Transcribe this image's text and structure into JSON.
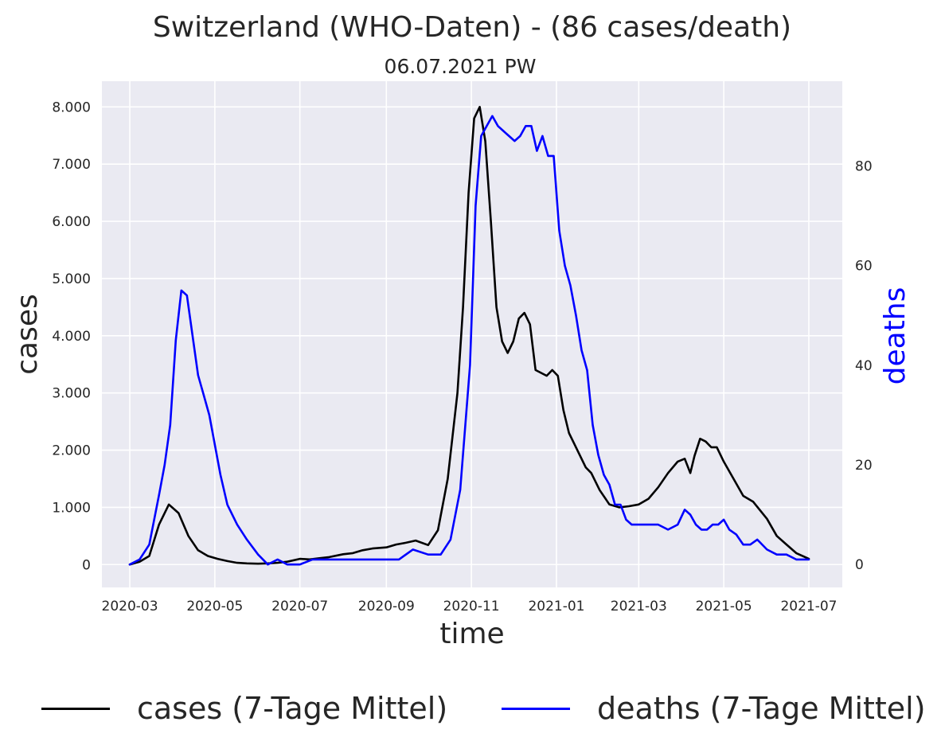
{
  "chart_data": {
    "type": "line",
    "title": "Switzerland (WHO-Daten) - (86 cases/death)",
    "subtitle": "06.07.2021 PW",
    "xlabel": "time",
    "ylabel": "cases",
    "ylabel_right": "deaths",
    "x_ticks": [
      "2020-03",
      "2020-05",
      "2020-07",
      "2020-09",
      "2020-11",
      "2021-01",
      "2021-03",
      "2021-05",
      "2021-07"
    ],
    "y_ticks": [
      "0",
      "1.000",
      "2.000",
      "3.000",
      "4.000",
      "5.000",
      "6.000",
      "7.000",
      "8.000"
    ],
    "y_ticks_right": [
      "0",
      "20",
      "40",
      "60",
      "80"
    ],
    "xlim": [
      "2020-02-10",
      "2021-07-25"
    ],
    "ylim": [
      -400,
      8450
    ],
    "ylim_right": [
      -4.6,
      97
    ],
    "grid": true,
    "legend_position": "bottom",
    "series": [
      {
        "name": "cases (7-Tage Mittel)",
        "axis": "left",
        "color": "#000000",
        "x": [
          "2020-03-01",
          "2020-03-08",
          "2020-03-15",
          "2020-03-22",
          "2020-03-29",
          "2020-04-05",
          "2020-04-12",
          "2020-04-19",
          "2020-04-26",
          "2020-05-03",
          "2020-05-10",
          "2020-05-17",
          "2020-05-24",
          "2020-06-01",
          "2020-06-08",
          "2020-06-15",
          "2020-06-22",
          "2020-07-01",
          "2020-07-08",
          "2020-07-15",
          "2020-07-22",
          "2020-08-01",
          "2020-08-08",
          "2020-08-15",
          "2020-08-22",
          "2020-09-01",
          "2020-09-08",
          "2020-09-15",
          "2020-09-22",
          "2020-10-01",
          "2020-10-08",
          "2020-10-15",
          "2020-10-22",
          "2020-10-26",
          "2020-10-30",
          "2020-11-03",
          "2020-11-07",
          "2020-11-11",
          "2020-11-15",
          "2020-11-19",
          "2020-11-23",
          "2020-11-27",
          "2020-12-01",
          "2020-12-05",
          "2020-12-09",
          "2020-12-13",
          "2020-12-17",
          "2020-12-21",
          "2020-12-25",
          "2020-12-29",
          "2021-01-02",
          "2021-01-06",
          "2021-01-10",
          "2021-01-14",
          "2021-01-18",
          "2021-01-22",
          "2021-01-26",
          "2021-02-01",
          "2021-02-08",
          "2021-02-15",
          "2021-02-22",
          "2021-03-01",
          "2021-03-08",
          "2021-03-15",
          "2021-03-22",
          "2021-03-29",
          "2021-04-03",
          "2021-04-07",
          "2021-04-10",
          "2021-04-14",
          "2021-04-18",
          "2021-04-22",
          "2021-04-26",
          "2021-05-01",
          "2021-05-08",
          "2021-05-15",
          "2021-05-22",
          "2021-06-01",
          "2021-06-08",
          "2021-06-15",
          "2021-06-22",
          "2021-07-01"
        ],
        "values": [
          0,
          50,
          150,
          700,
          1050,
          900,
          500,
          250,
          150,
          100,
          60,
          30,
          20,
          15,
          20,
          30,
          50,
          100,
          90,
          110,
          130,
          180,
          200,
          250,
          280,
          300,
          350,
          380,
          420,
          340,
          600,
          1500,
          3000,
          4500,
          6500,
          7800,
          8000,
          7400,
          6000,
          4500,
          3900,
          3700,
          3900,
          4300,
          4400,
          4200,
          3400,
          3350,
          3300,
          3400,
          3300,
          2700,
          2300,
          2100,
          1900,
          1700,
          1600,
          1300,
          1050,
          1000,
          1020,
          1050,
          1150,
          1350,
          1600,
          1800,
          1850,
          1600,
          1900,
          2200,
          2150,
          2050,
          2050,
          1800,
          1500,
          1200,
          1100,
          800,
          500,
          350,
          200,
          100
        ]
      },
      {
        "name": "deaths (7-Tage Mittel)",
        "axis": "right",
        "color": "#0000ff",
        "x": [
          "2020-03-01",
          "2020-03-08",
          "2020-03-15",
          "2020-03-22",
          "2020-03-26",
          "2020-03-30",
          "2020-04-03",
          "2020-04-07",
          "2020-04-11",
          "2020-04-15",
          "2020-04-19",
          "2020-04-23",
          "2020-04-27",
          "2020-05-01",
          "2020-05-05",
          "2020-05-10",
          "2020-05-17",
          "2020-05-24",
          "2020-06-01",
          "2020-06-08",
          "2020-06-15",
          "2020-06-22",
          "2020-07-01",
          "2020-07-10",
          "2020-07-20",
          "2020-08-01",
          "2020-08-10",
          "2020-08-20",
          "2020-09-01",
          "2020-09-10",
          "2020-09-20",
          "2020-10-01",
          "2020-10-10",
          "2020-10-17",
          "2020-10-24",
          "2020-10-31",
          "2020-11-04",
          "2020-11-08",
          "2020-11-12",
          "2020-11-16",
          "2020-11-20",
          "2020-11-24",
          "2020-11-28",
          "2020-12-02",
          "2020-12-06",
          "2020-12-10",
          "2020-12-14",
          "2020-12-18",
          "2020-12-22",
          "2020-12-26",
          "2020-12-30",
          "2021-01-03",
          "2021-01-07",
          "2021-01-11",
          "2021-01-15",
          "2021-01-19",
          "2021-01-23",
          "2021-01-27",
          "2021-01-31",
          "2021-02-04",
          "2021-02-08",
          "2021-02-12",
          "2021-02-16",
          "2021-02-20",
          "2021-02-24",
          "2021-03-01",
          "2021-03-08",
          "2021-03-15",
          "2021-03-22",
          "2021-03-29",
          "2021-04-03",
          "2021-04-07",
          "2021-04-11",
          "2021-04-15",
          "2021-04-19",
          "2021-04-23",
          "2021-04-27",
          "2021-05-01",
          "2021-05-05",
          "2021-05-10",
          "2021-05-15",
          "2021-05-20",
          "2021-05-25",
          "2021-06-01",
          "2021-06-08",
          "2021-06-15",
          "2021-06-22",
          "2021-07-01"
        ],
        "values": [
          0,
          1,
          4,
          14,
          20,
          28,
          45,
          55,
          54,
          46,
          38,
          34,
          30,
          24,
          18,
          12,
          8,
          5,
          2,
          0,
          1,
          0,
          0,
          1,
          1,
          1,
          1,
          1,
          1,
          1,
          3,
          2,
          2,
          5,
          15,
          40,
          72,
          86,
          88,
          90,
          88,
          87,
          86,
          85,
          86,
          88,
          88,
          83,
          86,
          82,
          82,
          67,
          60,
          56,
          50,
          43,
          39,
          28,
          22,
          18,
          16,
          12,
          12,
          9,
          8,
          8,
          8,
          8,
          7,
          8,
          11,
          10,
          8,
          7,
          7,
          8,
          8,
          9,
          7,
          6,
          4,
          4,
          5,
          3,
          2,
          2,
          1,
          1
        ]
      }
    ]
  }
}
